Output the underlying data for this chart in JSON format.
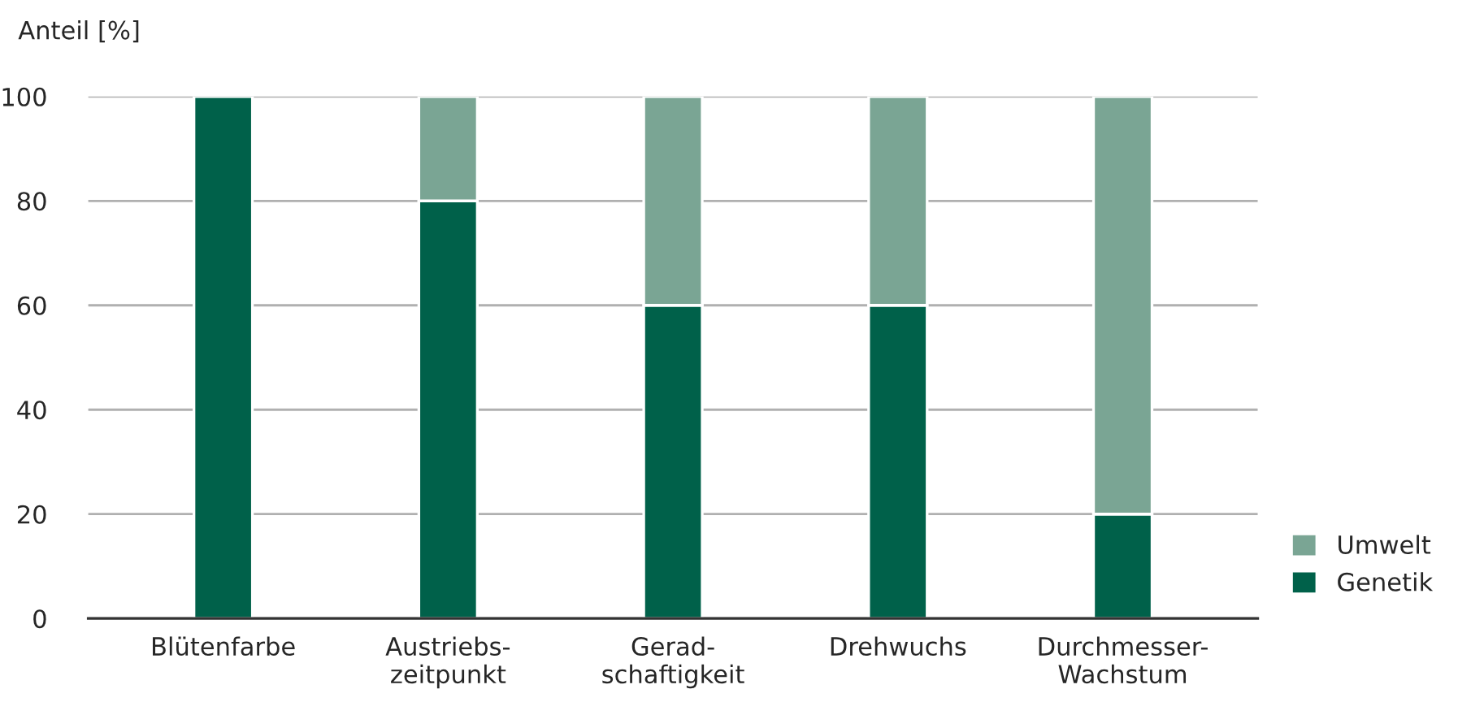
{
  "chart_data": {
    "type": "bar",
    "stacked": true,
    "ylabel": "Anteil [%]",
    "categories": [
      "Blütenfarbe",
      "Austriebs-\nzeitpunkt",
      "Gerad-\nschaftigkeit",
      "Drehwuchs",
      "Durchmesser-\nWachstum"
    ],
    "series": [
      {
        "name": "Genetik",
        "color": "#00614a",
        "values": [
          100,
          80,
          60,
          60,
          20
        ]
      },
      {
        "name": "Umwelt",
        "color": "#7aa594",
        "values": [
          null,
          20,
          40,
          40,
          80
        ]
      }
    ],
    "ylim": [
      0,
      100
    ],
    "yticks": [
      0,
      20,
      40,
      60,
      80,
      100
    ],
    "grid": "y",
    "legend": "bottom right"
  }
}
